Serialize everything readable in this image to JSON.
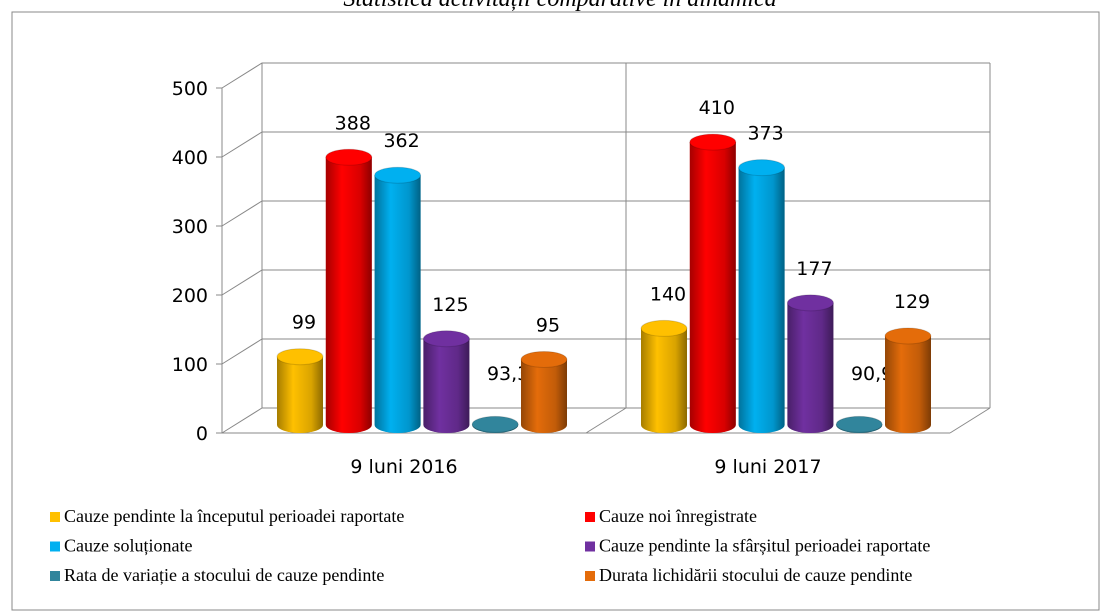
{
  "chart_data": {
    "type": "bar3d",
    "title": "Statistica activității comparative în dinamică",
    "categories": [
      "9 luni 2016",
      "9 luni 2017"
    ],
    "series": [
      {
        "name": "Cauze pendinte la începutul perioadei raportate",
        "color": "#ffc000",
        "values": [
          99,
          140
        ]
      },
      {
        "name": "Cauze noi înregistrate",
        "color": "#ff0000",
        "values": [
          388,
          410
        ]
      },
      {
        "name": "Cauze soluționate",
        "color": "#00b0f0",
        "values": [
          362,
          373
        ]
      },
      {
        "name": "Cauze pendinte la sfârșitul perioadei raportate",
        "color": "#7030a0",
        "values": [
          125,
          177
        ]
      },
      {
        "name": "Rata de variație a stocului de cauze pendinte",
        "color": "#31859c",
        "values": [
          0.933,
          0.9098
        ],
        "value_labels": [
          "93,30%",
          "90,98%"
        ]
      },
      {
        "name": "Durata lichidării stocului de cauze pendinte",
        "color": "#e46c0a",
        "values": [
          95,
          129
        ]
      }
    ],
    "ylim": [
      0,
      500
    ],
    "yticks": [
      0,
      100,
      200,
      300,
      400,
      500
    ],
    "grid": true,
    "legend": "bottom"
  }
}
